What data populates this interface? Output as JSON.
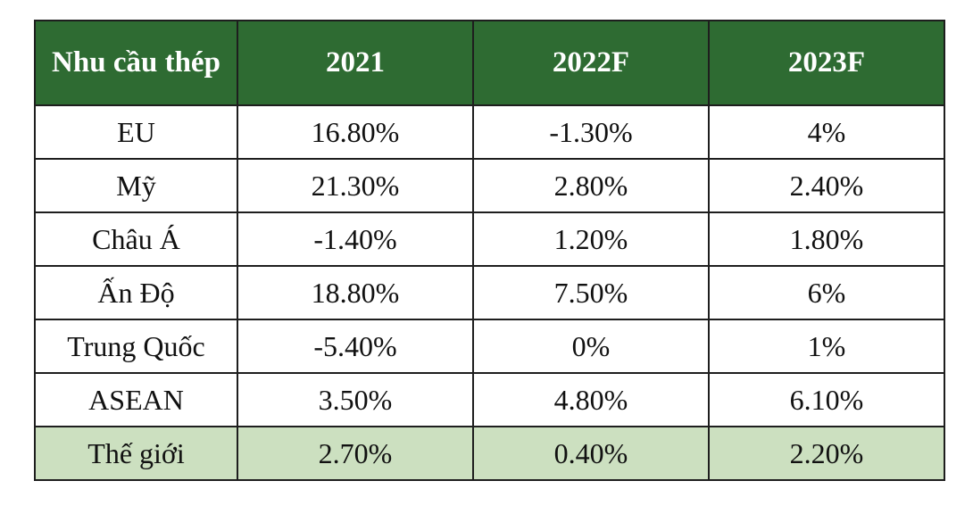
{
  "table": {
    "headers": [
      "Nhu cầu thép",
      "2021",
      "2022F",
      "2023F"
    ],
    "rows": [
      [
        "EU",
        "16.80%",
        "-1.30%",
        "4%"
      ],
      [
        "Mỹ",
        "21.30%",
        "2.80%",
        "2.40%"
      ],
      [
        "Châu Á",
        "-1.40%",
        "1.20%",
        "1.80%"
      ],
      [
        "Ấn Độ",
        "18.80%",
        "7.50%",
        "6%"
      ],
      [
        "Trung Quốc",
        "-5.40%",
        "0%",
        "1%"
      ],
      [
        "ASEAN",
        "3.50%",
        "4.80%",
        "6.10%"
      ],
      [
        "Thế giới",
        "2.70%",
        "0.40%",
        "2.20%"
      ]
    ]
  },
  "colors": {
    "header_bg": "#2e6b32",
    "header_text": "#ffffff",
    "highlight_row_bg": "#cce0c0",
    "border": "#1e1e1e"
  }
}
